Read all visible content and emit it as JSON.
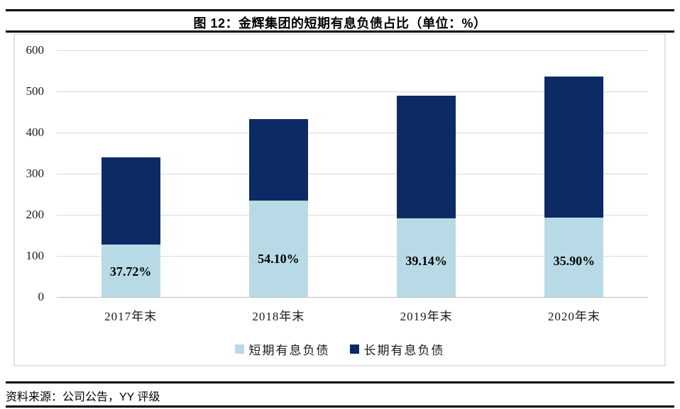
{
  "header": {
    "title": "图 12：金辉集团的短期有息负债占比（单位：%）"
  },
  "footer": {
    "source": "资料来源：公司公告，YY 评级"
  },
  "chart_data": {
    "type": "bar",
    "stacked": true,
    "title": "图 12：金辉集团的短期有息负债占比（单位：%）",
    "categories": [
      "2017年末",
      "2018年末",
      "2019年末",
      "2020年末"
    ],
    "series": [
      {
        "name": "短期有息负债",
        "color": "#b7dae6",
        "values": [
          128,
          234,
          192,
          193
        ]
      },
      {
        "name": "长期有息负债",
        "color": "#0c2a63",
        "values": [
          212,
          198,
          298,
          344
        ]
      }
    ],
    "totals": [
      340,
      432,
      490,
      537
    ],
    "bar_labels": [
      "37.72%",
      "54.10%",
      "39.14%",
      "35.90%"
    ],
    "xlabel": "",
    "ylabel": "",
    "ylim": [
      0,
      600
    ],
    "yticks": [
      0,
      100,
      200,
      300,
      400,
      500,
      600
    ],
    "grid": true,
    "legend_position": "bottom",
    "colors": {
      "gridline": "#d9d9d9",
      "axis_line": "#bfbfbf",
      "label_text": "#000000"
    }
  }
}
